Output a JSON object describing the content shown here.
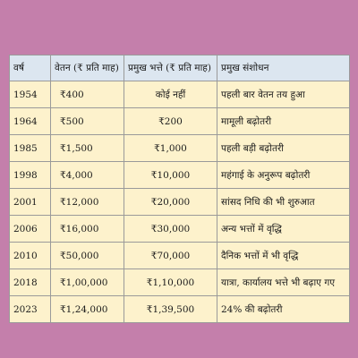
{
  "table": {
    "headers": [
      "वर्ष",
      "वेतन (₹ प्रति माह)",
      "प्रमुख भत्ते (₹ प्रति माह)",
      "प्रमुख संशोधन"
    ],
    "rows": [
      {
        "year": "1954",
        "salary": "₹400",
        "allowance": "कोई नहीं",
        "revision": "पहली बार वेतन तय हुआ"
      },
      {
        "year": "1964",
        "salary": "₹500",
        "allowance": "₹200",
        "revision": "मामूली बढ़ोतरी"
      },
      {
        "year": "1985",
        "salary": "₹1,500",
        "allowance": "₹1,000",
        "revision": "पहली बड़ी बढ़ोतरी"
      },
      {
        "year": "1998",
        "salary": "₹4,000",
        "allowance": "₹10,000",
        "revision": "महंगाई के अनुरूप बढ़ोतरी"
      },
      {
        "year": "2001",
        "salary": "₹12,000",
        "allowance": "₹20,000",
        "revision": "सांसद निधि की भी शुरुआत"
      },
      {
        "year": "2006",
        "salary": "₹16,000",
        "allowance": "₹30,000",
        "revision": "अन्य भत्तों में वृद्धि"
      },
      {
        "year": "2010",
        "salary": "₹50,000",
        "allowance": "₹70,000",
        "revision": "दैनिक भत्तों में भी वृद्धि"
      },
      {
        "year": "2018",
        "salary": "₹1,00,000",
        "allowance": "₹1,10,000",
        "revision": "यात्रा, कार्यालय भत्ते भी बढ़ाए गए"
      },
      {
        "year": "2023",
        "salary": "₹1,24,000",
        "allowance": "₹1,39,500",
        "revision": "24% की बढ़ोतरी"
      }
    ]
  },
  "colors": {
    "background": "#c47fab",
    "header_fill": "#dce6f0",
    "row_fill": "#fdf2cc",
    "border": "#9a9a9a"
  }
}
